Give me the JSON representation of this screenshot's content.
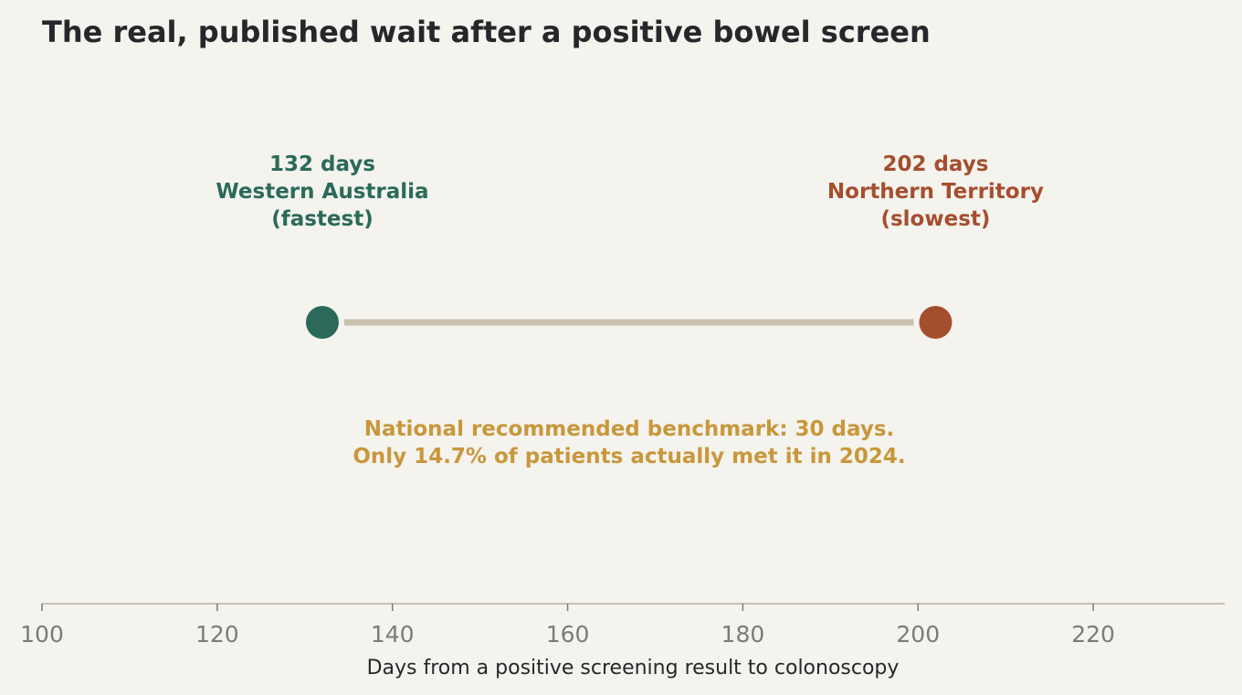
{
  "chart_data": {
    "type": "scatter",
    "title": "The real, published wait after a positive bowel screen",
    "xlabel": "Days from a positive screening result to colonoscopy",
    "ylabel": "",
    "xlim": [
      100,
      235
    ],
    "xticks": [
      100,
      120,
      140,
      160,
      180,
      200,
      220
    ],
    "grid": false,
    "points": [
      {
        "name": "Western Australia",
        "value": 132,
        "label_lines": [
          "132 days",
          "Western Australia",
          "(fastest)"
        ],
        "color": "#2b6a5a"
      },
      {
        "name": "Northern Territory",
        "value": 202,
        "label_lines": [
          "202 days",
          "Northern Territory",
          "(slowest)"
        ],
        "color": "#a54e2e"
      }
    ],
    "connector_color": "#c9c1ad",
    "note": {
      "lines": [
        "National recommended benchmark: 30 days.",
        "Only 14.7% of patients actually met it in 2024."
      ],
      "color": "#c9973b"
    }
  }
}
